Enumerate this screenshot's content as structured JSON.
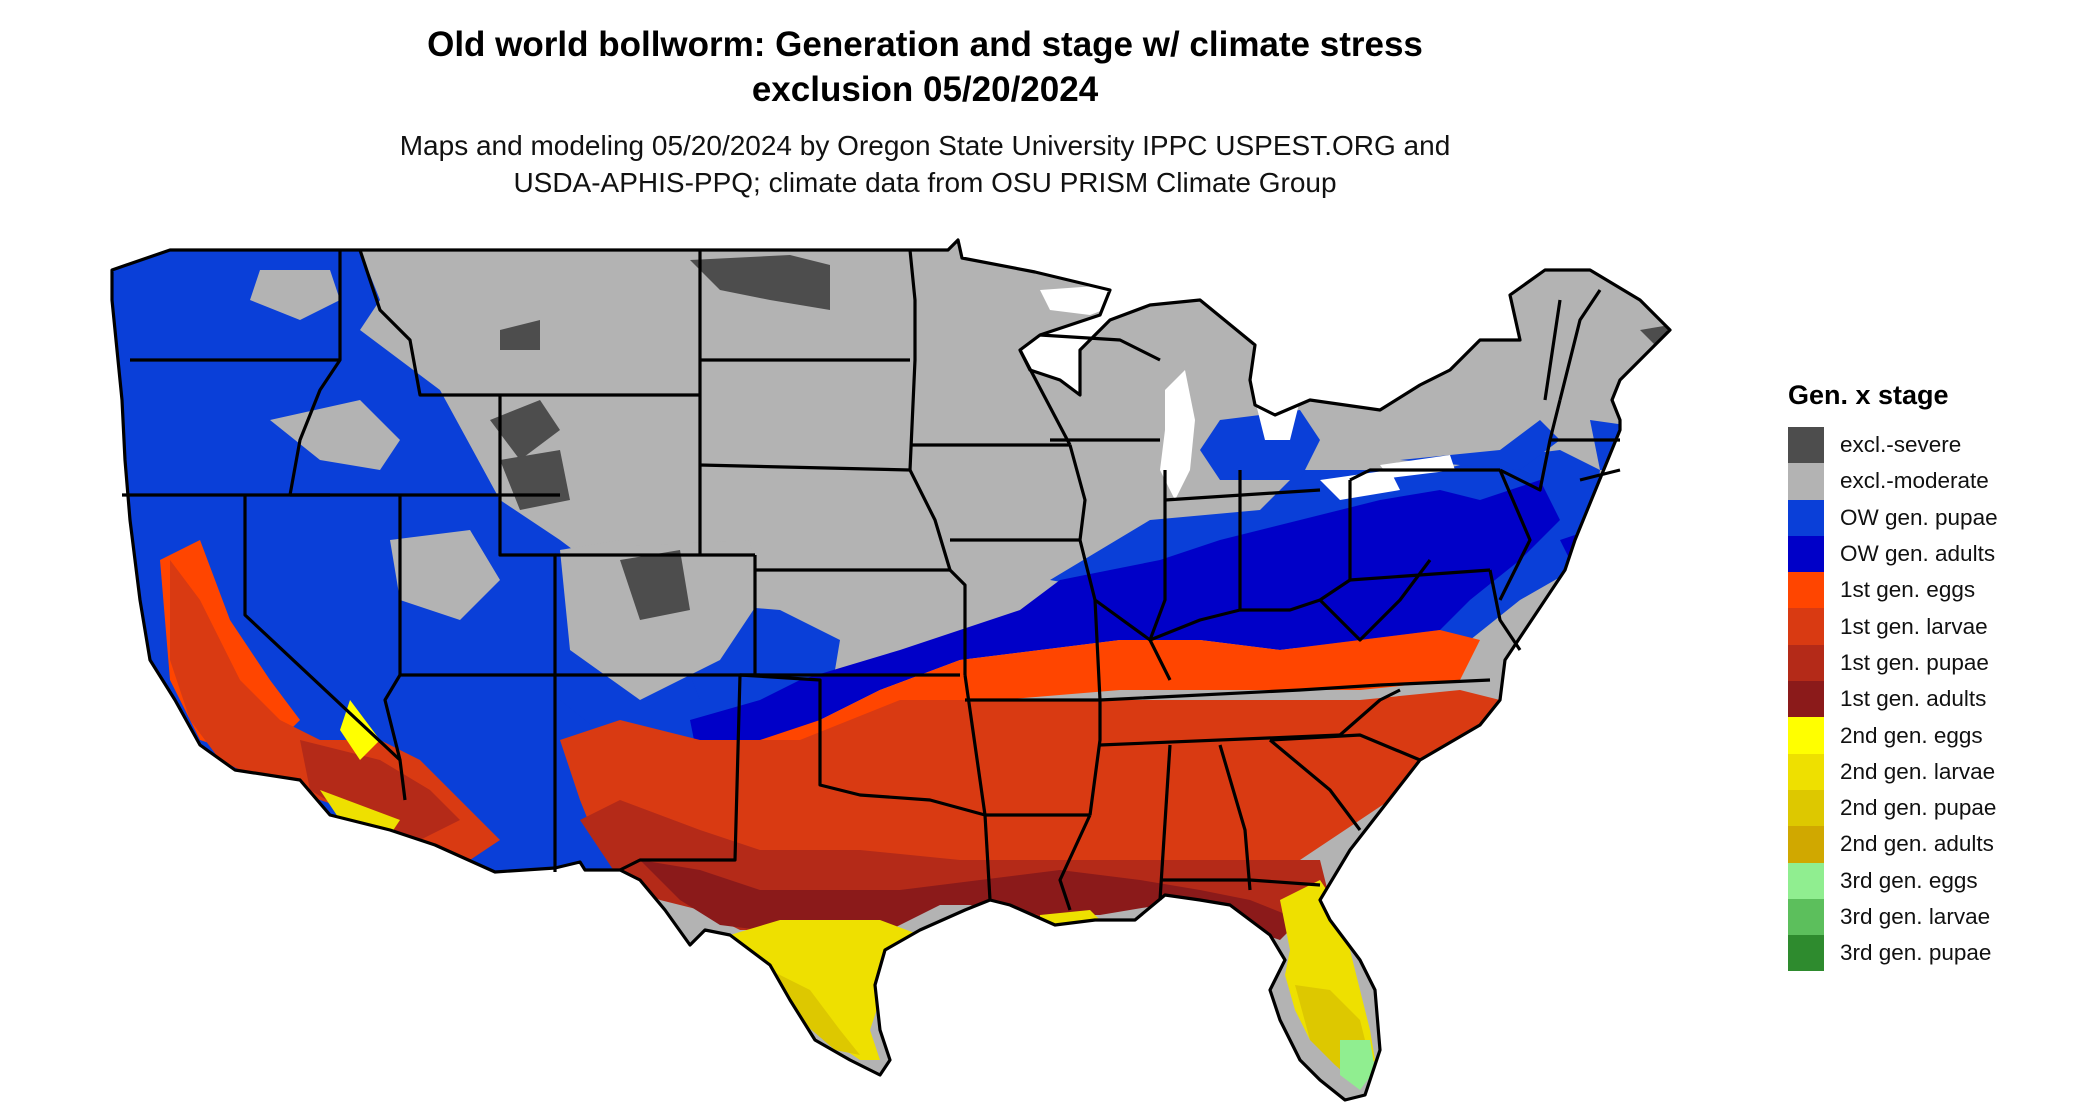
{
  "title": {
    "line1": "Old world bollworm: Generation and stage w/ climate stress",
    "line2": "exclusion 05/20/2024"
  },
  "subtitle": {
    "line1": "Maps and modeling 05/20/2024 by Oregon State University IPPC USPEST.ORG and",
    "line2": "USDA-APHIS-PPQ; climate data from OSU PRISM Climate Group"
  },
  "legend": {
    "title": "Gen. x stage",
    "items": [
      {
        "label": "excl.-severe",
        "color": "#4d4d4d"
      },
      {
        "label": "excl.-moderate",
        "color": "#b3b3b3"
      },
      {
        "label": "OW gen. pupae",
        "color": "#0a3fd8"
      },
      {
        "label": "OW gen. adults",
        "color": "#0000c8"
      },
      {
        "label": "1st gen. eggs",
        "color": "#ff4500"
      },
      {
        "label": "1st gen. larvae",
        "color": "#d93a12"
      },
      {
        "label": "1st gen. pupae",
        "color": "#b42a18"
      },
      {
        "label": "1st gen. adults",
        "color": "#8b1a1a"
      },
      {
        "label": "2nd gen. eggs",
        "color": "#ffff00"
      },
      {
        "label": "2nd gen. larvae",
        "color": "#eee000"
      },
      {
        "label": "2nd gen. pupae",
        "color": "#ddc800"
      },
      {
        "label": "2nd gen. adults",
        "color": "#d0a800"
      },
      {
        "label": "3rd gen. eggs",
        "color": "#90ee90"
      },
      {
        "label": "3rd gen. larvae",
        "color": "#5cbf5c"
      },
      {
        "label": "3rd gen. pupae",
        "color": "#2e8b2e"
      }
    ]
  }
}
